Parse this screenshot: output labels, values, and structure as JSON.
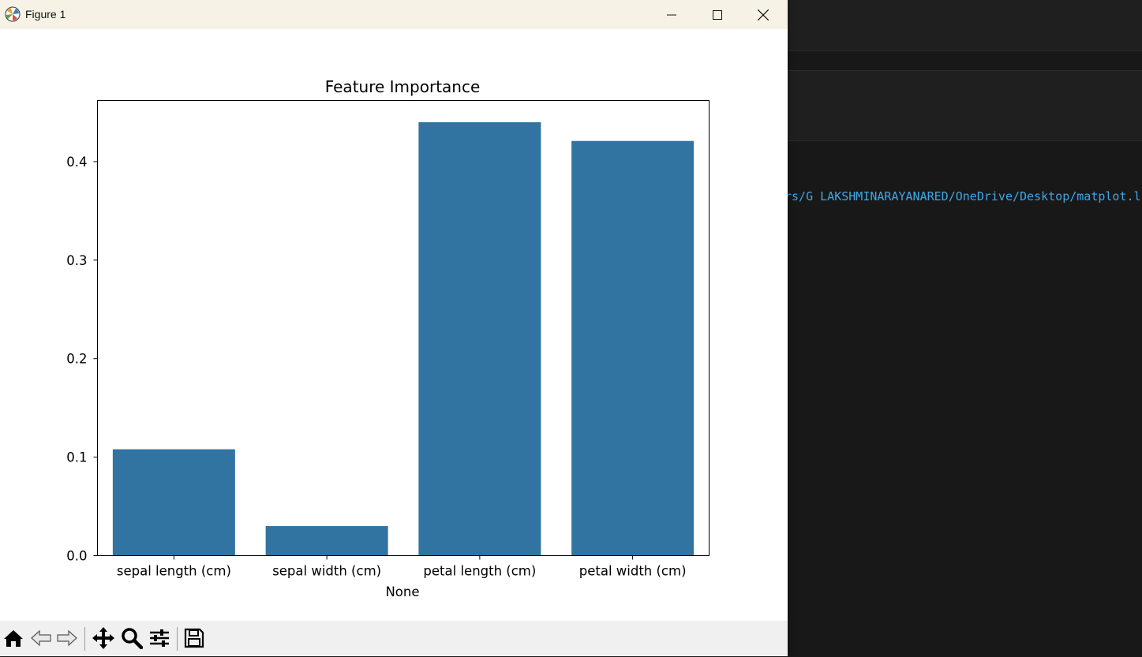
{
  "window": {
    "title": "Figure 1",
    "controls": {
      "minimize": "minimize-icon",
      "maximize": "maximize-icon",
      "close": "close-icon"
    }
  },
  "toolbar": {
    "buttons": [
      "home-icon",
      "back-icon",
      "forward-icon",
      "pan-icon",
      "zoom-icon",
      "configure-subplots-icon",
      "save-icon"
    ]
  },
  "background_editor": {
    "terminal_text": "rs/G LAKSHMINARAYANARED/OneDrive/Desktop/matplot.l"
  },
  "colors": {
    "bar": "#3274a1",
    "titlebar": "#f6f3e6",
    "toolbar": "#f0f0f0",
    "terminal_text": "#3fa7e6"
  },
  "chart_data": {
    "type": "bar",
    "title": "Feature Importance",
    "xlabel": "None",
    "ylabel": "",
    "categories": [
      "sepal length (cm)",
      "sepal width (cm)",
      "petal length (cm)",
      "petal width (cm)"
    ],
    "values": [
      0.108,
      0.03,
      0.44,
      0.421
    ],
    "ylim": [
      0,
      0.462
    ],
    "yticks": [
      0.0,
      0.1,
      0.2,
      0.3,
      0.4
    ],
    "ytick_labels": [
      "0.0",
      "0.1",
      "0.2",
      "0.3",
      "0.4"
    ],
    "grid": false,
    "legend": "none"
  }
}
